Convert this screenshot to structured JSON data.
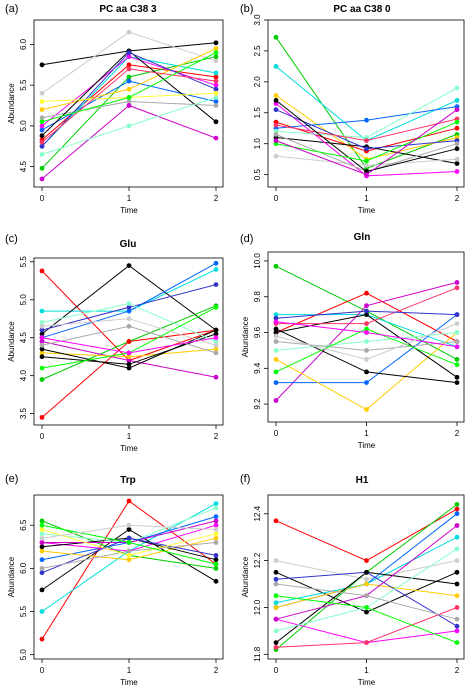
{
  "chart_data": [
    {
      "panel": "(a)",
      "title": "PC  aa  C38  3",
      "type": "line",
      "xlabel": "Time",
      "ylabel": "Abundance",
      "x": [
        0,
        1,
        2
      ],
      "xticks": [
        "0",
        "1",
        "2"
      ],
      "ylim": [
        4.25,
        6.3
      ],
      "yticks": [
        4.5,
        5.0,
        5.5,
        6.0
      ],
      "ytick_labels": [
        "4.5",
        "5.0",
        "5.5",
        "6.0"
      ],
      "series": [
        {
          "color": "#000000",
          "values": [
            5.75,
            5.92,
            6.02
          ]
        },
        {
          "color": "#cccccc",
          "values": [
            5.4,
            6.15,
            5.8
          ]
        },
        {
          "color": "#ff0000",
          "values": [
            4.83,
            5.75,
            5.6
          ]
        },
        {
          "color": "#00cc00",
          "values": [
            4.48,
            5.6,
            5.85
          ]
        },
        {
          "color": "#0066ff",
          "values": [
            4.95,
            5.55,
            5.3
          ]
        },
        {
          "color": "#00dddd",
          "values": [
            4.75,
            5.85,
            5.65
          ]
        },
        {
          "color": "#ff00ff",
          "values": [
            5.0,
            5.85,
            5.5
          ]
        },
        {
          "color": "#ffcc00",
          "values": [
            5.2,
            5.45,
            5.95
          ]
        },
        {
          "color": "#aaaaaa",
          "values": [
            5.1,
            5.3,
            5.25
          ]
        },
        {
          "color": "#000000",
          "values": [
            4.88,
            5.92,
            5.05
          ]
        },
        {
          "color": "#cc00cc",
          "values": [
            4.35,
            5.25,
            4.85
          ]
        },
        {
          "color": "#3333cc",
          "values": [
            4.75,
            5.9,
            5.45
          ]
        },
        {
          "color": "#88ffcc",
          "values": [
            4.65,
            5.0,
            5.35
          ]
        },
        {
          "color": "#ffff33",
          "values": [
            5.3,
            5.35,
            5.4
          ]
        },
        {
          "color": "#ff3366",
          "values": [
            4.8,
            5.7,
            5.55
          ]
        },
        {
          "color": "#00ff00",
          "values": [
            5.05,
            5.35,
            5.9
          ]
        }
      ]
    },
    {
      "panel": "(b)",
      "title": "PC  aa  C38  0",
      "type": "line",
      "xlabel": "Time",
      "ylabel": "",
      "x": [
        0,
        1,
        2
      ],
      "xticks": [
        "0",
        "1",
        "2"
      ],
      "ylim": [
        0.3,
        3.0
      ],
      "yticks": [
        0.5,
        1.0,
        1.5,
        2.0,
        2.5,
        3.0
      ],
      "ytick_labels": [
        "0.5",
        "1.0",
        "1.5",
        "2.0",
        "2.5",
        "3.0"
      ],
      "series": [
        {
          "color": "#00cc00",
          "values": [
            2.72,
            0.6,
            1.15
          ]
        },
        {
          "color": "#00dddd",
          "values": [
            2.25,
            1.05,
            1.7
          ]
        },
        {
          "color": "#ffcc00",
          "values": [
            1.78,
            0.75,
            1.1
          ]
        },
        {
          "color": "#ff0000",
          "values": [
            1.35,
            0.88,
            1.25
          ]
        },
        {
          "color": "#0066ff",
          "values": [
            1.25,
            1.38,
            1.6
          ]
        },
        {
          "color": "#000000",
          "values": [
            1.1,
            0.95,
            0.68
          ]
        },
        {
          "color": "#cccccc",
          "values": [
            0.8,
            0.65,
            0.75
          ]
        },
        {
          "color": "#ff00ff",
          "values": [
            1.65,
            0.48,
            0.55
          ]
        },
        {
          "color": "#3333cc",
          "values": [
            1.55,
            0.92,
            1.05
          ]
        },
        {
          "color": "#88ffcc",
          "values": [
            1.2,
            1.1,
            1.9
          ]
        },
        {
          "color": "#ff3366",
          "values": [
            1.3,
            1.05,
            1.4
          ]
        },
        {
          "color": "#aaaaaa",
          "values": [
            1.15,
            0.55,
            1.0
          ]
        },
        {
          "color": "#000000",
          "values": [
            1.7,
            0.55,
            0.92
          ]
        },
        {
          "color": "#00ff00",
          "values": [
            1.0,
            0.72,
            1.35
          ]
        },
        {
          "color": "#cc00cc",
          "values": [
            1.05,
            0.5,
            1.55
          ]
        }
      ]
    },
    {
      "panel": "(c)",
      "title": "Glu",
      "type": "line",
      "xlabel": "Time",
      "ylabel": "Abundance",
      "x": [
        0,
        1,
        2
      ],
      "xticks": [
        "0",
        "1",
        "2"
      ],
      "ylim": [
        3.35,
        5.55
      ],
      "yticks": [
        3.5,
        4.0,
        4.5,
        5.0,
        5.5
      ],
      "ytick_labels": [
        "3.5",
        "4.0",
        "4.5",
        "5.0",
        "5.5"
      ],
      "series": [
        {
          "color": "#ff0000",
          "values": [
            5.38,
            4.2,
            4.6
          ]
        },
        {
          "color": "#00dddd",
          "values": [
            4.85,
            4.85,
            5.4
          ]
        },
        {
          "color": "#000000",
          "values": [
            4.55,
            5.45,
            4.6
          ]
        },
        {
          "color": "#0066ff",
          "values": [
            4.5,
            4.85,
            5.48
          ]
        },
        {
          "color": "#3333cc",
          "values": [
            4.6,
            4.9,
            5.2
          ]
        },
        {
          "color": "#00cc00",
          "values": [
            3.95,
            4.45,
            4.92
          ]
        },
        {
          "color": "#ff0000",
          "values": [
            3.45,
            4.45,
            4.6
          ]
        },
        {
          "color": "#cc00cc",
          "values": [
            4.45,
            4.2,
            3.98
          ]
        },
        {
          "color": "#ffcc00",
          "values": [
            4.3,
            4.25,
            4.35
          ]
        },
        {
          "color": "#000000",
          "values": [
            4.35,
            4.1,
            4.6
          ]
        },
        {
          "color": "#000000",
          "values": [
            4.25,
            4.15,
            4.55
          ]
        },
        {
          "color": "#aaaaaa",
          "values": [
            4.4,
            4.65,
            4.3
          ]
        },
        {
          "color": "#88ffcc",
          "values": [
            4.7,
            4.95,
            4.45
          ]
        },
        {
          "color": "#00ff00",
          "values": [
            4.1,
            4.3,
            4.9
          ]
        },
        {
          "color": "#ff00ff",
          "values": [
            4.5,
            4.3,
            4.5
          ]
        },
        {
          "color": "#cccccc",
          "values": [
            4.65,
            4.75,
            4.4
          ]
        }
      ]
    },
    {
      "panel": "(d)",
      "title": "Gln",
      "type": "line",
      "xlabel": "Time",
      "ylabel": "Abundance",
      "x": [
        0,
        1,
        2
      ],
      "xticks": [
        "0",
        "1",
        "2"
      ],
      "ylim": [
        9.1,
        10.05
      ],
      "yticks": [
        9.2,
        9.4,
        9.6,
        9.8,
        10.0
      ],
      "ytick_labels": [
        "9.2",
        "9.4",
        "9.6",
        "9.8",
        "10.0"
      ],
      "series": [
        {
          "color": "#00cc00",
          "values": [
            9.97,
            9.72,
            9.45
          ]
        },
        {
          "color": "#00dddd",
          "values": [
            9.7,
            9.7,
            9.52
          ]
        },
        {
          "color": "#ff0000",
          "values": [
            9.6,
            9.82,
            9.55
          ]
        },
        {
          "color": "#cc00cc",
          "values": [
            9.22,
            9.75,
            9.88
          ]
        },
        {
          "color": "#0066ff",
          "values": [
            9.32,
            9.32,
            9.7
          ]
        },
        {
          "color": "#ffcc00",
          "values": [
            9.45,
            9.17,
            9.6
          ]
        },
        {
          "color": "#000000",
          "values": [
            9.62,
            9.38,
            9.32
          ]
        },
        {
          "color": "#000000",
          "values": [
            9.6,
            9.7,
            9.35
          ]
        },
        {
          "color": "#88ffcc",
          "values": [
            9.5,
            9.55,
            9.6
          ]
        },
        {
          "color": "#ff3366",
          "values": [
            9.65,
            9.65,
            9.85
          ]
        },
        {
          "color": "#aaaaaa",
          "values": [
            9.55,
            9.5,
            9.55
          ]
        },
        {
          "color": "#3333cc",
          "values": [
            9.68,
            9.72,
            9.7
          ]
        },
        {
          "color": "#00ff00",
          "values": [
            9.38,
            9.62,
            9.42
          ]
        },
        {
          "color": "#ff00ff",
          "values": [
            9.66,
            9.6,
            9.52
          ]
        },
        {
          "color": "#cccccc",
          "values": [
            9.58,
            9.45,
            9.65
          ]
        }
      ]
    },
    {
      "panel": "(e)",
      "title": "Trp",
      "type": "line",
      "xlabel": "Time",
      "ylabel": "Abundance",
      "x": [
        0,
        1,
        2
      ],
      "xticks": [
        "0",
        "1",
        "2"
      ],
      "ylim": [
        4.95,
        6.85
      ],
      "yticks": [
        5.0,
        5.5,
        6.0,
        6.5
      ],
      "ytick_labels": [
        "5.0",
        "5.5",
        "6.0",
        "6.5"
      ],
      "series": [
        {
          "color": "#ff0000",
          "values": [
            5.18,
            6.78,
            6.05
          ]
        },
        {
          "color": "#00dddd",
          "values": [
            5.5,
            6.2,
            6.75
          ]
        },
        {
          "color": "#000000",
          "values": [
            5.75,
            6.45,
            5.85
          ]
        },
        {
          "color": "#00cc00",
          "values": [
            6.55,
            6.15,
            6.0
          ]
        },
        {
          "color": "#0066ff",
          "values": [
            6.1,
            6.3,
            6.6
          ]
        },
        {
          "color": "#ff00ff",
          "values": [
            6.3,
            6.2,
            6.5
          ]
        },
        {
          "color": "#ffcc00",
          "values": [
            6.2,
            6.1,
            6.35
          ]
        },
        {
          "color": "#000000",
          "values": [
            6.25,
            6.35,
            6.1
          ]
        },
        {
          "color": "#88ffcc",
          "values": [
            6.4,
            6.3,
            6.7
          ]
        },
        {
          "color": "#cc00cc",
          "values": [
            6.3,
            6.3,
            6.55
          ]
        },
        {
          "color": "#3333cc",
          "values": [
            5.95,
            6.35,
            6.15
          ]
        },
        {
          "color": "#aaaaaa",
          "values": [
            6.0,
            6.2,
            6.3
          ]
        },
        {
          "color": "#ffff33",
          "values": [
            6.45,
            6.15,
            6.4
          ]
        },
        {
          "color": "#00ff00",
          "values": [
            6.5,
            6.3,
            6.05
          ]
        },
        {
          "color": "#cccccc",
          "values": [
            6.35,
            6.5,
            6.45
          ]
        }
      ]
    },
    {
      "panel": "(f)",
      "title": "H1",
      "type": "line",
      "xlabel": "Time",
      "ylabel": "Abundance",
      "x": [
        0,
        1,
        2
      ],
      "xticks": [
        "0",
        "1",
        "2"
      ],
      "ylim": [
        11.78,
        12.48
      ],
      "yticks": [
        11.8,
        12.0,
        12.2,
        12.4
      ],
      "ytick_labels": [
        "11.8",
        "12.0",
        "12.2",
        "12.4"
      ],
      "series": [
        {
          "color": "#ff0000",
          "values": [
            12.37,
            12.2,
            12.42
          ]
        },
        {
          "color": "#cccccc",
          "values": [
            12.2,
            12.12,
            12.2
          ]
        },
        {
          "color": "#000000",
          "values": [
            12.15,
            11.98,
            12.15
          ]
        },
        {
          "color": "#00cc00",
          "values": [
            11.82,
            12.15,
            12.44
          ]
        },
        {
          "color": "#0066ff",
          "values": [
            12.0,
            12.1,
            12.4
          ]
        },
        {
          "color": "#00dddd",
          "values": [
            12.02,
            12.1,
            12.3
          ]
        },
        {
          "color": "#ffcc00",
          "values": [
            12.0,
            12.1,
            12.05
          ]
        },
        {
          "color": "#ff00ff",
          "values": [
            11.95,
            11.85,
            11.9
          ]
        },
        {
          "color": "#3333cc",
          "values": [
            12.12,
            12.15,
            11.92
          ]
        },
        {
          "color": "#000000",
          "values": [
            11.85,
            12.15,
            12.1
          ]
        },
        {
          "color": "#88ffcc",
          "values": [
            11.9,
            12.0,
            12.25
          ]
        },
        {
          "color": "#cc00cc",
          "values": [
            11.95,
            12.05,
            12.35
          ]
        },
        {
          "color": "#ff3366",
          "values": [
            11.83,
            11.85,
            12.0
          ]
        },
        {
          "color": "#00ff00",
          "values": [
            12.05,
            12.0,
            11.85
          ]
        },
        {
          "color": "#aaaaaa",
          "values": [
            12.1,
            12.05,
            11.95
          ]
        }
      ]
    }
  ]
}
